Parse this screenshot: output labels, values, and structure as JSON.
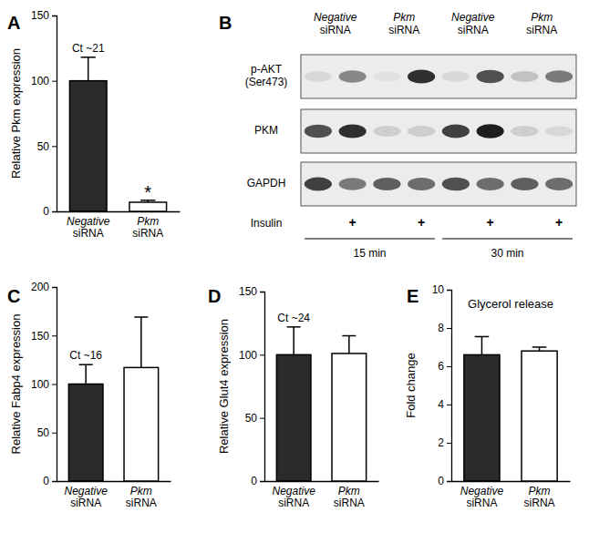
{
  "chart_data": [
    {
      "type": "bar",
      "panel": "A",
      "ylabel": "Relative Pkm expression",
      "categories": [
        "Negative siRNA",
        "Pkm siRNA"
      ],
      "values": [
        100,
        7
      ],
      "errors": [
        18,
        1.5
      ],
      "colors": [
        "#2b2b2b",
        "#ffffff"
      ],
      "ylim": [
        0,
        150
      ],
      "yticks": [
        0,
        50,
        100,
        150
      ],
      "annotations": [
        {
          "text": "Ct ~21",
          "category": "Negative siRNA"
        },
        {
          "text": "*",
          "category": "Pkm siRNA"
        }
      ]
    },
    {
      "type": "blot",
      "panel": "B",
      "rows": [
        "p-AKT (Ser473)",
        "PKM",
        "GAPDH"
      ],
      "groups": [
        "Negative siRNA",
        "Pkm siRNA",
        "Negative siRNA",
        "Pkm siRNA"
      ],
      "treatment_label": "Insulin",
      "treatment": [
        null,
        "+",
        null,
        "+",
        null,
        "+",
        null,
        "+"
      ],
      "time_groups": [
        "15 min",
        "30 min"
      ],
      "cells": [
        [
          0.25,
          0.55,
          0.2,
          0.85,
          0.25,
          0.75,
          0.35,
          0.6
        ],
        [
          0.75,
          0.85,
          0.3,
          0.3,
          0.8,
          0.9,
          0.3,
          0.25
        ],
        [
          0.8,
          0.6,
          0.7,
          0.65,
          0.75,
          0.65,
          0.7,
          0.65
        ]
      ]
    },
    {
      "type": "bar",
      "panel": "C",
      "ylabel": "Relative Fabp4 expression",
      "categories": [
        "Negative siRNA",
        "Pkm siRNA"
      ],
      "values": [
        100,
        117
      ],
      "errors": [
        20,
        52
      ],
      "colors": [
        "#2b2b2b",
        "#ffffff"
      ],
      "ylim": [
        0,
        200
      ],
      "yticks": [
        0,
        50,
        100,
        150,
        200
      ],
      "annotations": [
        {
          "text": "Ct ~16",
          "category": "Negative siRNA"
        }
      ]
    },
    {
      "type": "bar",
      "panel": "D",
      "ylabel": "Relative Glut4 expression",
      "categories": [
        "Negative siRNA",
        "Pkm siRNA"
      ],
      "values": [
        100,
        101
      ],
      "errors": [
        22,
        14
      ],
      "colors": [
        "#2b2b2b",
        "#ffffff"
      ],
      "ylim": [
        0,
        150
      ],
      "yticks": [
        0,
        50,
        100,
        150
      ],
      "annotations": [
        {
          "text": "Ct ~24",
          "category": "Negative siRNA"
        }
      ]
    },
    {
      "type": "bar",
      "panel": "E",
      "title": "Glycerol release",
      "ylabel": "Fold change",
      "categories": [
        "Negative siRNA",
        "Pkm siRNA"
      ],
      "values": [
        6.6,
        6.8
      ],
      "errors": [
        0.95,
        0.2
      ],
      "colors": [
        "#2b2b2b",
        "#ffffff"
      ],
      "ylim": [
        0,
        10
      ],
      "yticks": [
        0,
        2,
        4,
        6,
        8,
        10
      ]
    }
  ]
}
